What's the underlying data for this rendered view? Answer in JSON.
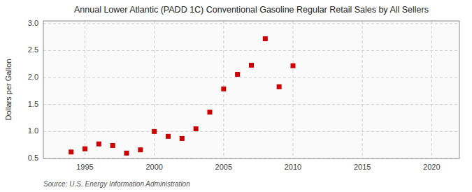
{
  "chart_data": {
    "type": "scatter",
    "title": "Annual Lower Atlantic (PADD 1C) Conventional Gasoline Regular Retail Sales by All Sellers",
    "ylabel": "Dollars per Gallon",
    "source": "Source: U.S. Energy Information Administration",
    "x": [
      1994,
      1995,
      1996,
      1997,
      1998,
      1999,
      2000,
      2001,
      2002,
      2003,
      2004,
      2005,
      2006,
      2007,
      2008,
      2009,
      2010
    ],
    "values": [
      0.62,
      0.68,
      0.77,
      0.74,
      0.6,
      0.66,
      1.0,
      0.91,
      0.87,
      1.05,
      1.36,
      1.79,
      2.06,
      2.23,
      2.72,
      1.83,
      2.22
    ],
    "color": "#cc0000",
    "marker": "square",
    "xlim": [
      1992,
      2022
    ],
    "xticks": [
      1995,
      2000,
      2005,
      2010,
      2015,
      2020
    ],
    "ylim": [
      0.5,
      3.05
    ],
    "yticks": [
      0.5,
      {
        "value": 1.0,
        "label": "1.0"
      },
      1.5,
      {
        "value": 2.0,
        "label": "2.0"
      },
      2.5,
      {
        "value": 3.0,
        "label": "3.0"
      }
    ],
    "grid": true
  }
}
